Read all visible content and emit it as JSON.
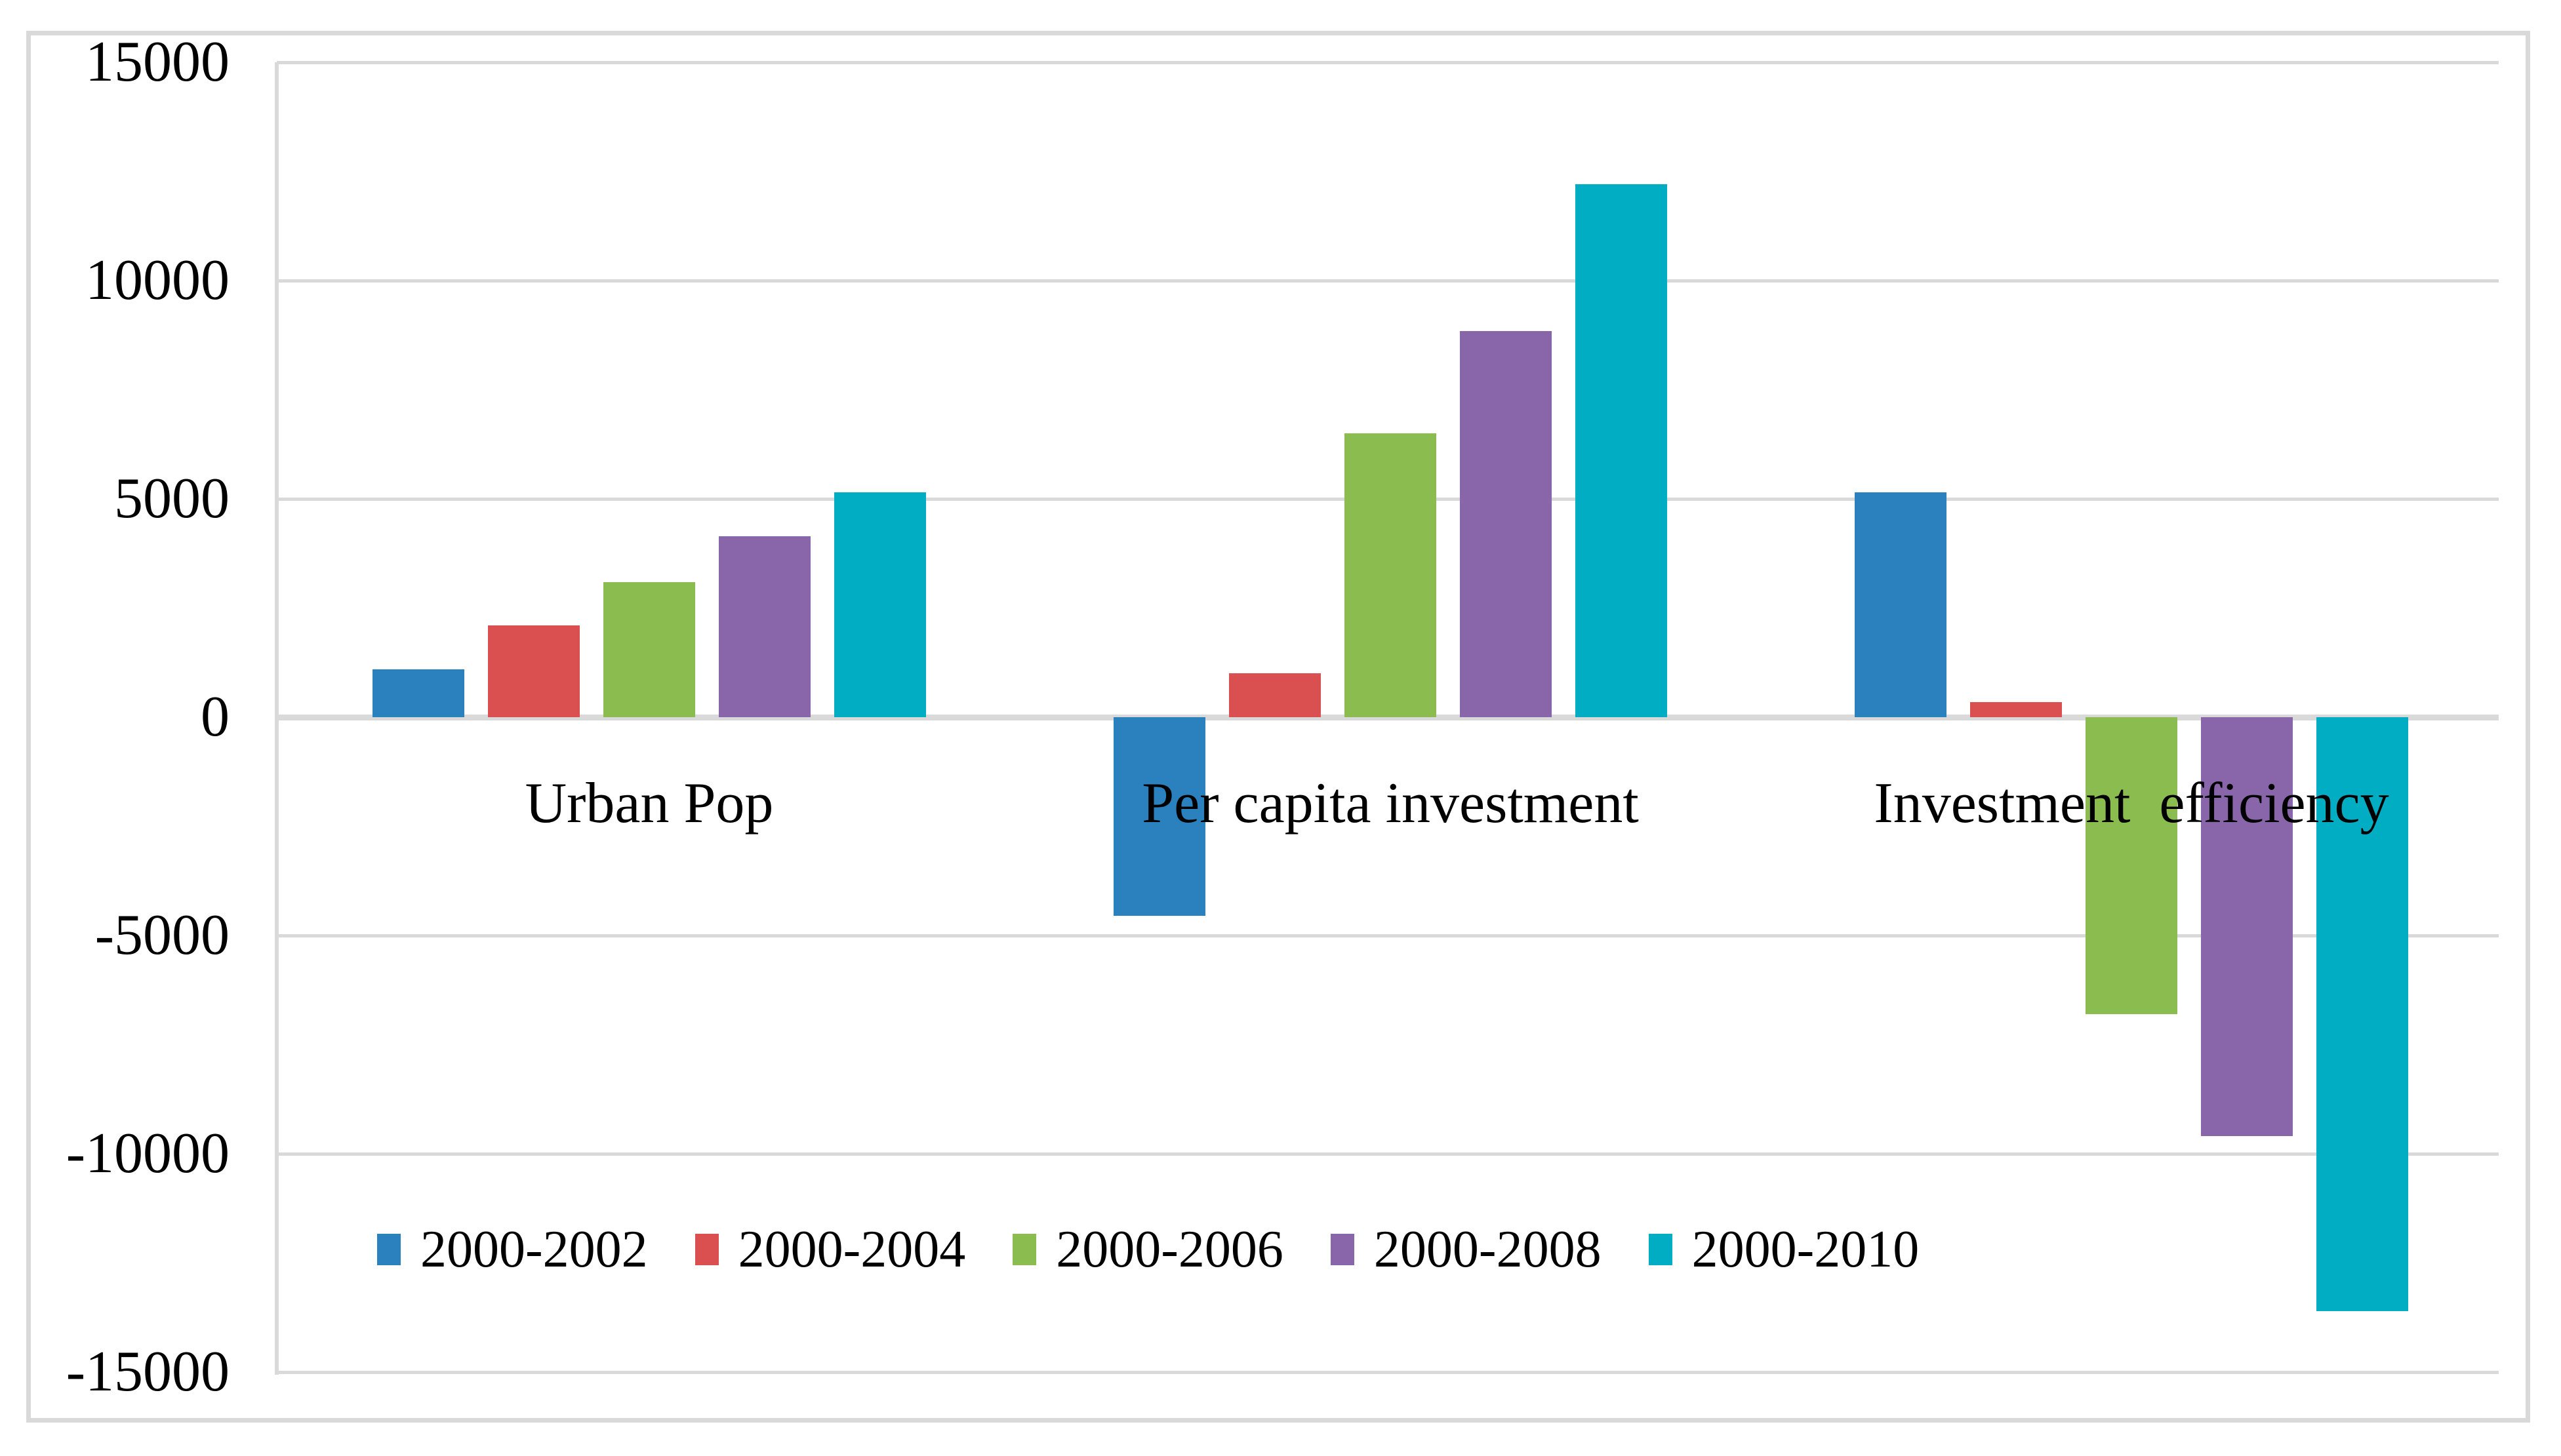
{
  "chart_data": {
    "type": "bar",
    "title": "",
    "xlabel": "",
    "ylabel": "",
    "categories": [
      "Urban Pop",
      "Per capita investment",
      "Investment  efficiency"
    ],
    "series": [
      {
        "name": "2000-2002",
        "color": "#2a81be",
        "values": [
          1100,
          -4550,
          5150
        ]
      },
      {
        "name": "2000-2004",
        "color": "#da4f4f",
        "values": [
          2100,
          1000,
          350
        ]
      },
      {
        "name": "2000-2006",
        "color": "#8bbc4f",
        "values": [
          3100,
          6500,
          -6800
        ]
      },
      {
        "name": "2000-2008",
        "color": "#8966a9",
        "values": [
          4150,
          8850,
          -9600
        ]
      },
      {
        "name": "2000-2010",
        "color": "#00adc2",
        "values": [
          5150,
          12200,
          -13600
        ]
      }
    ],
    "ylim": [
      -15000,
      15000
    ],
    "ytick_step": 5000,
    "ytick_labels": [
      "15000",
      "10000",
      "5000",
      "0",
      "-5000",
      "-10000",
      "-15000"
    ],
    "grid": true,
    "gridline_color": "#d9d9d9",
    "legend_position": "bottom"
  }
}
